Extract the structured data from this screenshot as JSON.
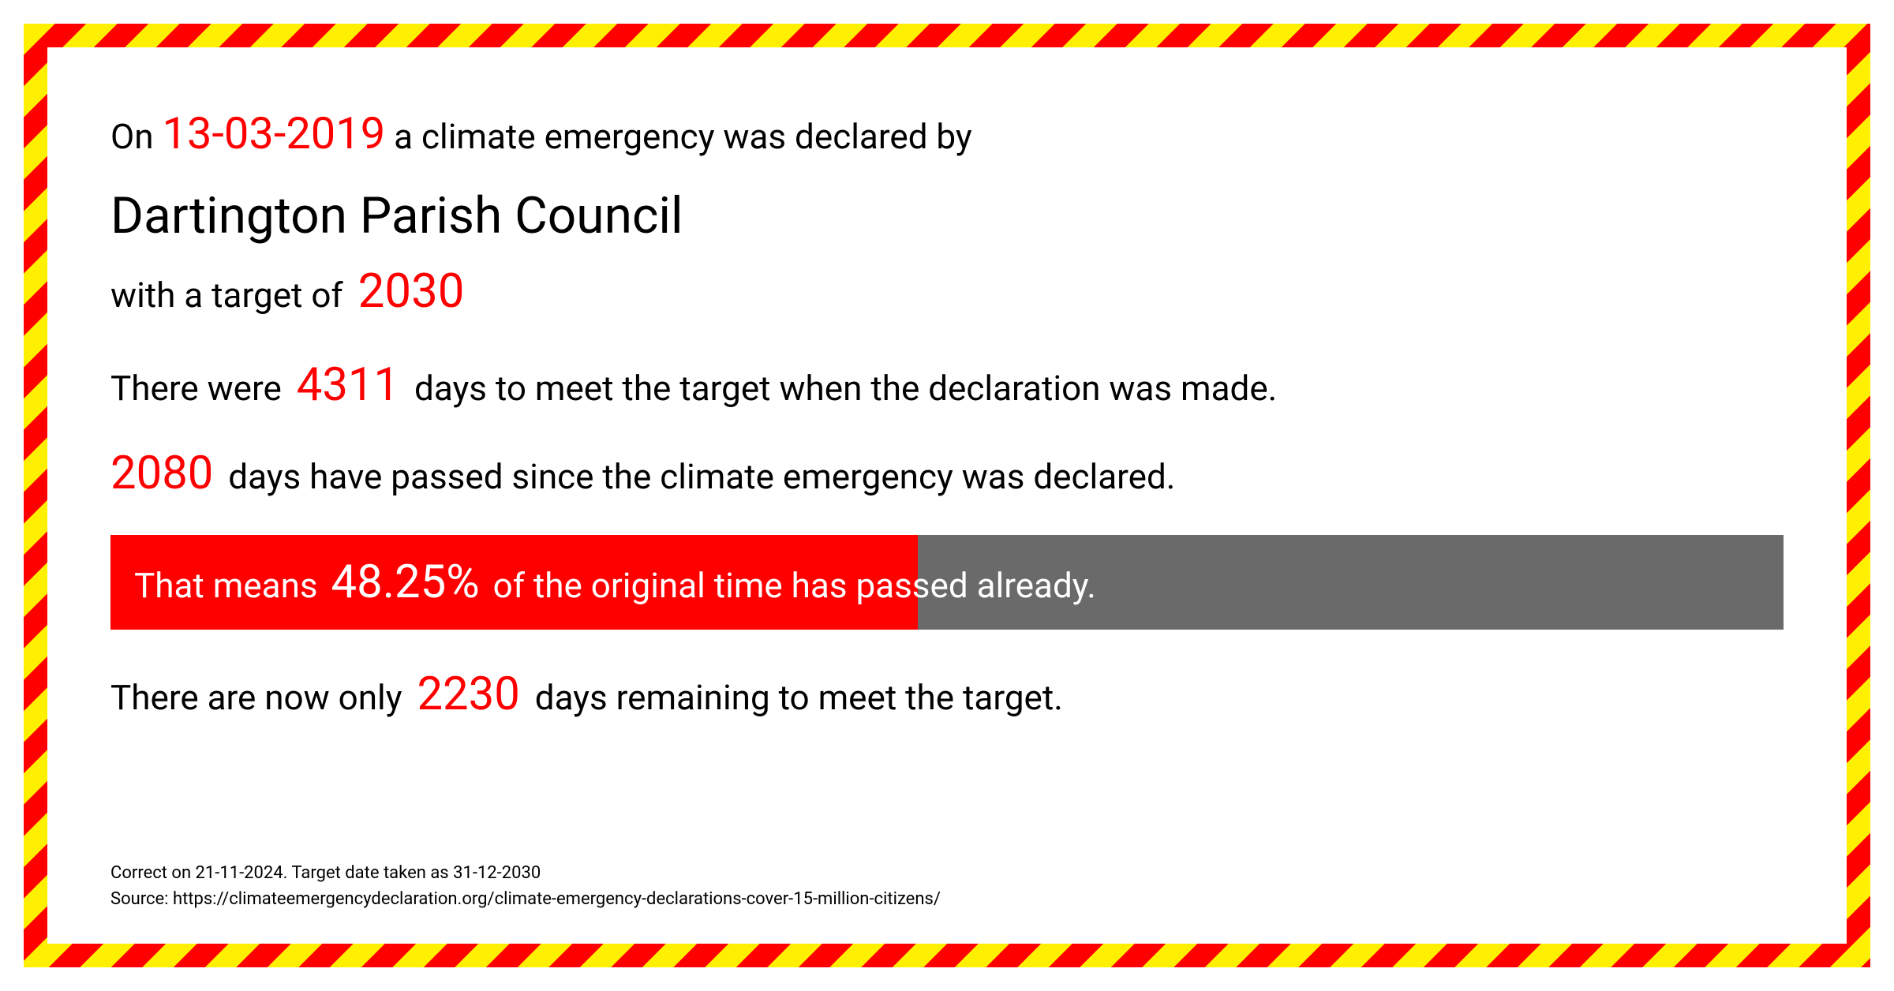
{
  "intro": {
    "prefix": "On ",
    "date": "13-03-2019",
    "suffix": " a climate emergency was declared by"
  },
  "council_name": "Dartington Parish Council",
  "target": {
    "prefix": "with a target of ",
    "year": "2030"
  },
  "days_total": {
    "prefix": "There were ",
    "value": "4311",
    "suffix": " days to meet the target when the declaration was made."
  },
  "days_passed": {
    "value": "2080",
    "suffix": " days have passed since the climate emergency was declared."
  },
  "progress": {
    "prefix": "That means ",
    "percent": "48.25%",
    "suffix": " of the original time has passed already.",
    "fill_pct": 48.25,
    "fill_color": "#ff0000",
    "track_color": "#6a6a6a"
  },
  "days_remaining": {
    "prefix": "There are now only ",
    "value": "2230",
    "suffix": " days remaining to meet the target."
  },
  "footer": {
    "line1": "Correct on 21-11-2024. Target date taken as 31-12-2030",
    "line2": "Source: https://climateemergencydeclaration.org/climate-emergency-declarations-cover-15-million-citizens/"
  },
  "colors": {
    "accent": "#ff0000",
    "stripe_yellow": "#ffef00",
    "stripe_red": "#ff0000",
    "text": "#000000",
    "bg": "#ffffff"
  }
}
